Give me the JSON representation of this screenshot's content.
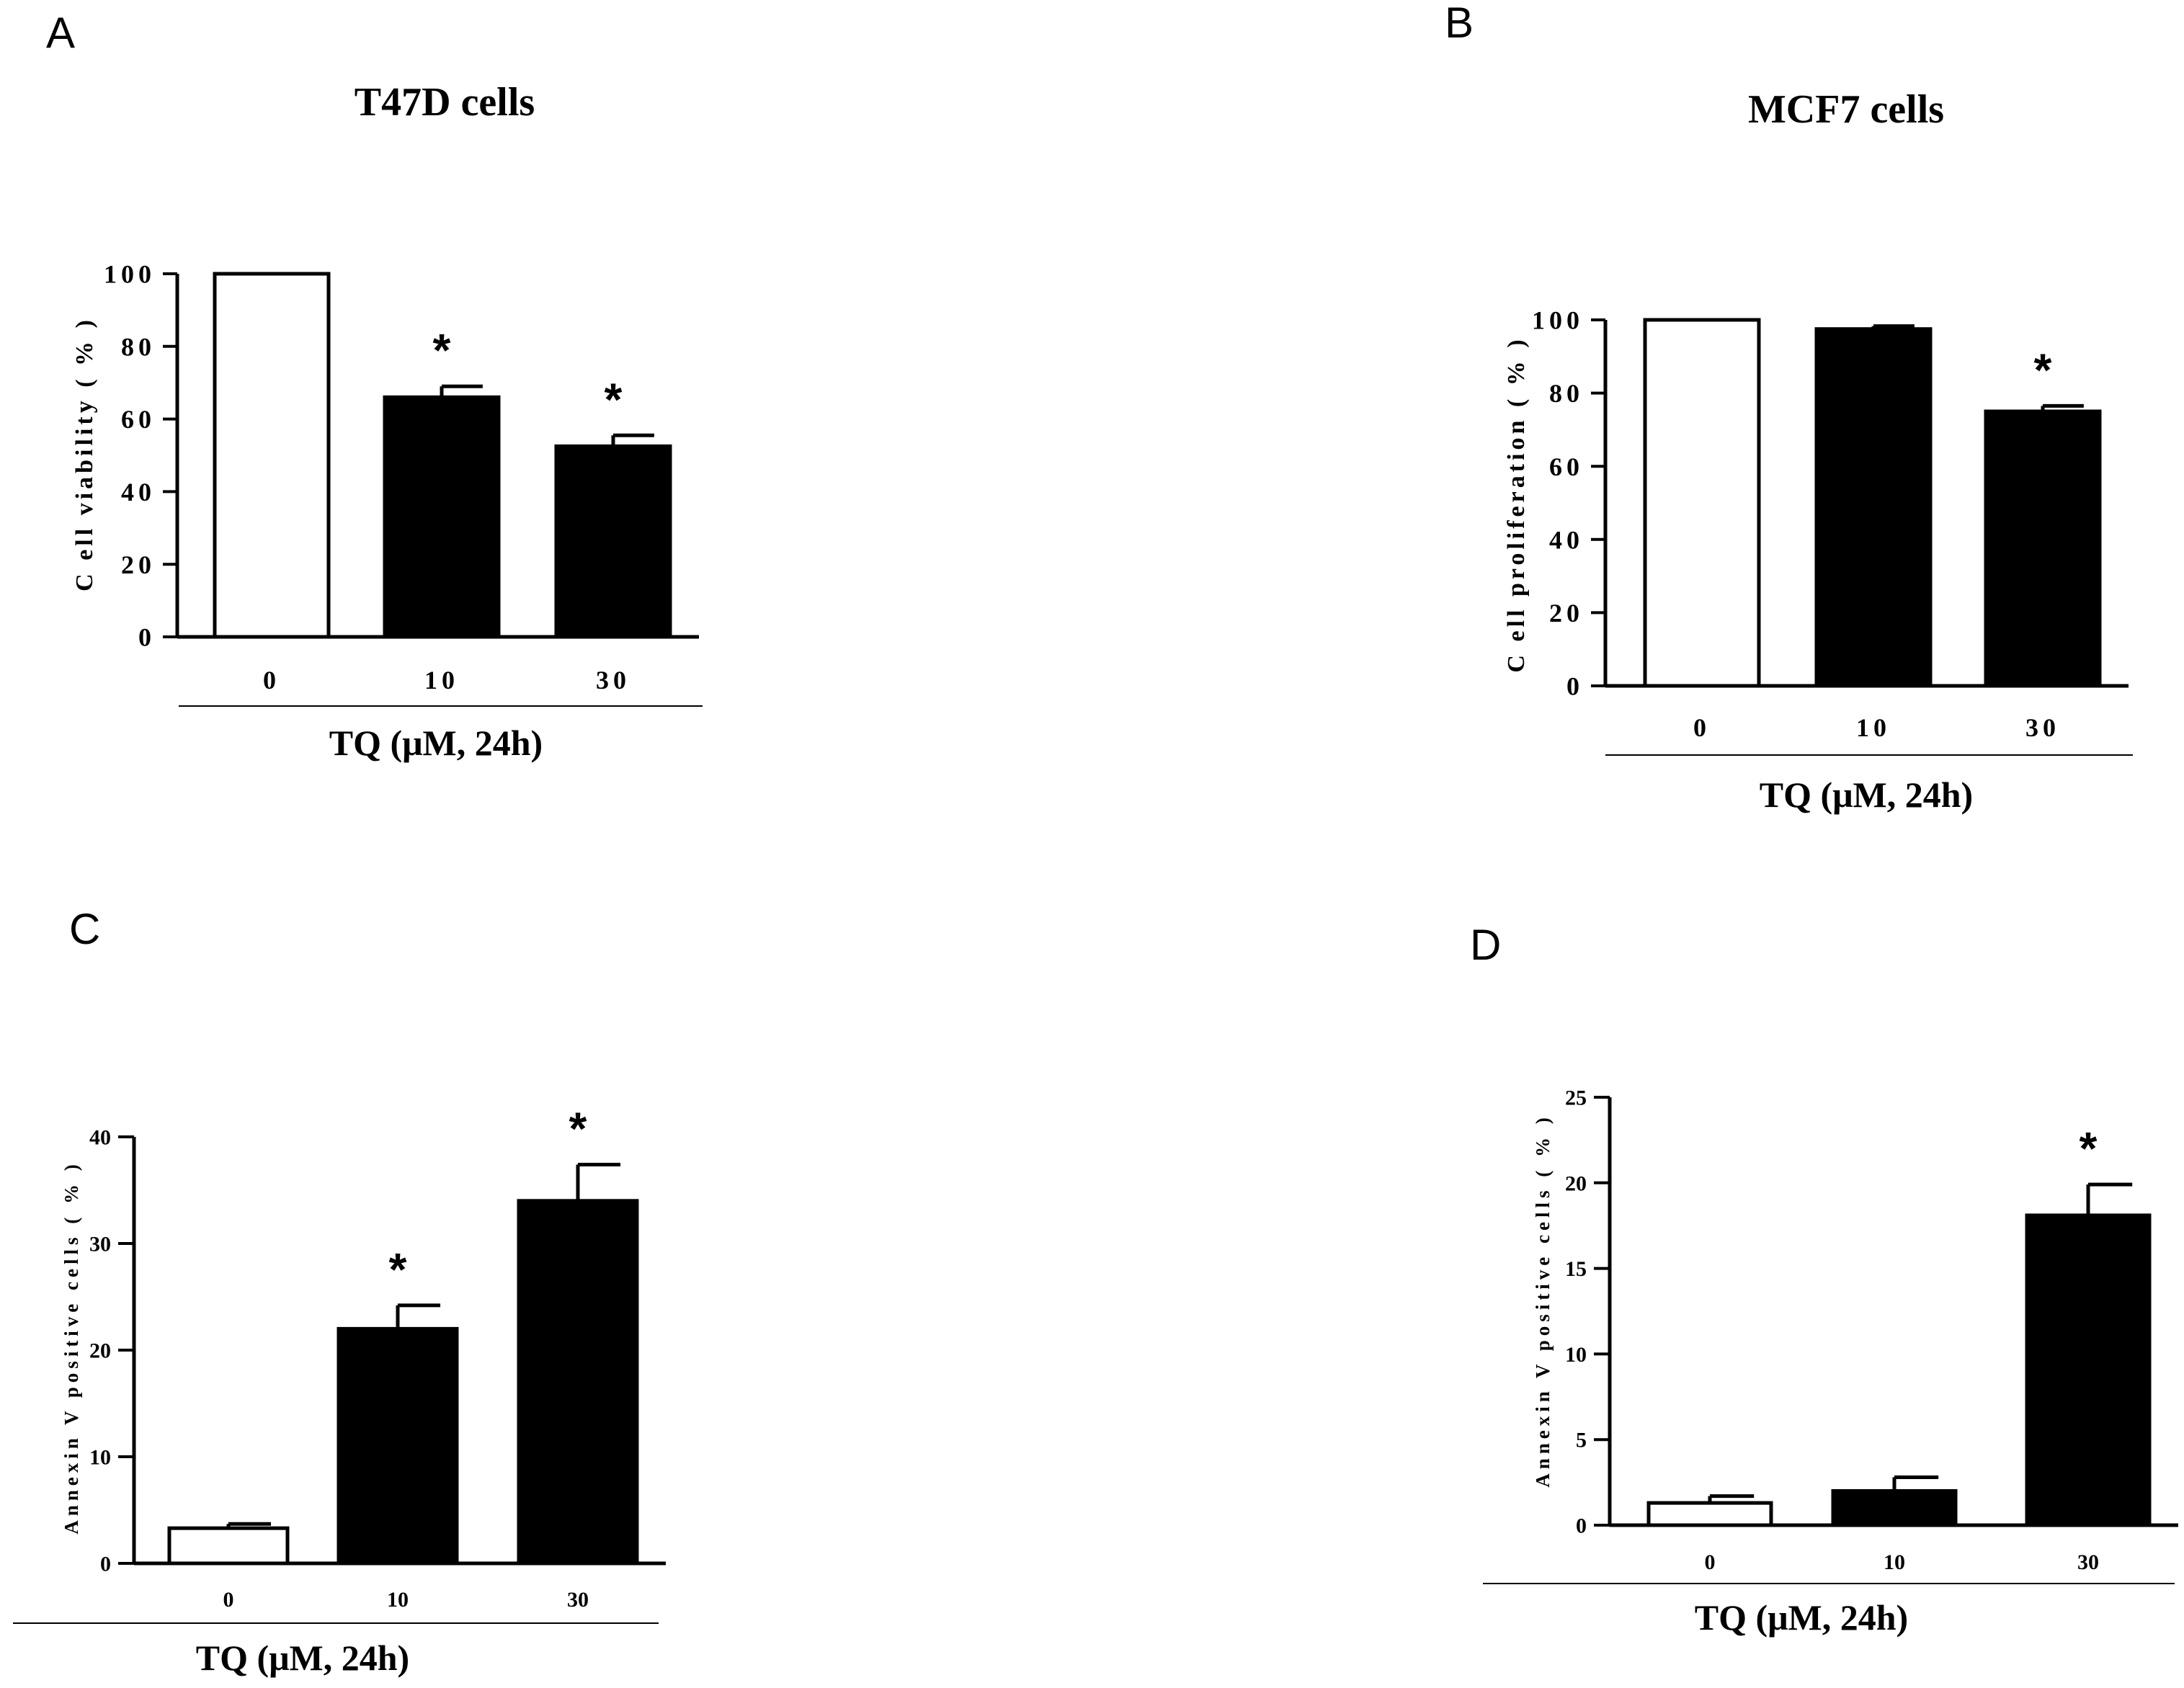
{
  "chart_data": [
    {
      "panel": "A",
      "type": "bar",
      "title": "T47D cells",
      "xlabel": "TQ (μM, 24h)",
      "ylabel": "C ell viability ( % )",
      "categories": [
        "0",
        "10",
        "30"
      ],
      "values": [
        100,
        66,
        52.5
      ],
      "errors": [
        0,
        3,
        3
      ],
      "significant": [
        false,
        true,
        true
      ],
      "significance_marker": "*",
      "bar_fill": [
        "#ffffff",
        "#000000",
        "#000000"
      ],
      "ylim": [
        0,
        100
      ],
      "yticks": [
        "0",
        "20",
        "40",
        "60",
        "80",
        "100"
      ]
    },
    {
      "panel": "B",
      "type": "bar",
      "title": "MCF7 cells",
      "xlabel": "TQ (μM, 24h)",
      "ylabel": "C ell proliferation ( % )",
      "categories": [
        "0",
        "10",
        "30"
      ],
      "values": [
        100,
        97.5,
        75
      ],
      "errors": [
        0,
        0.8,
        1.5
      ],
      "significant": [
        false,
        false,
        true
      ],
      "significance_marker": "*",
      "bar_fill": [
        "#ffffff",
        "#000000",
        "#000000"
      ],
      "ylim": [
        0,
        100
      ],
      "yticks": [
        "0",
        "20",
        "40",
        "60",
        "80",
        "100"
      ]
    },
    {
      "panel": "C",
      "type": "bar",
      "title": "",
      "xlabel": "TQ (μM, 24h)",
      "ylabel": "Annexin V positive cells ( % )",
      "categories": [
        "0",
        "10",
        "30"
      ],
      "values": [
        3.3,
        22,
        34
      ],
      "errors": [
        0.4,
        2.2,
        3.4
      ],
      "significant": [
        false,
        true,
        true
      ],
      "significance_marker": "*",
      "bar_fill": [
        "#ffffff",
        "#000000",
        "#000000"
      ],
      "ylim": [
        0,
        40
      ],
      "yticks": [
        "0",
        "10",
        "20",
        "30",
        "40"
      ]
    },
    {
      "panel": "D",
      "type": "bar",
      "title": "",
      "xlabel": "TQ (μM, 24h)",
      "ylabel": "Annexin V positive cells ( % )",
      "categories": [
        "0",
        "10",
        "30"
      ],
      "values": [
        1.3,
        2,
        18.1
      ],
      "errors": [
        0.4,
        0.8,
        1.8
      ],
      "significant": [
        false,
        false,
        true
      ],
      "significance_marker": "*",
      "bar_fill": [
        "#ffffff",
        "#000000",
        "#000000"
      ],
      "ylim": [
        0,
        25
      ],
      "yticks": [
        "0",
        "5",
        "10",
        "15",
        "20",
        "25"
      ]
    }
  ]
}
